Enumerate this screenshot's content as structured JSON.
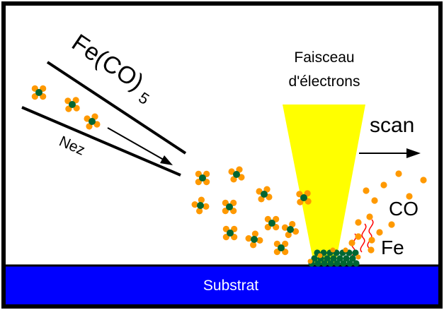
{
  "labels": {
    "precursor_main": "Fe(CO)",
    "precursor_sub": "5",
    "nozzle": "Nez",
    "beam_line1": "Faisceau",
    "beam_line2": "d'électrons",
    "scan": "scan",
    "co": "CO",
    "fe": "Fe",
    "substrate": "Substrat"
  },
  "colors": {
    "border": "#000000",
    "substrate": "#0000ff",
    "beam": "#ffff00",
    "co_atom": "#ff9900",
    "fe_atom": "#006633",
    "heat_wave": "#ff0000"
  }
}
